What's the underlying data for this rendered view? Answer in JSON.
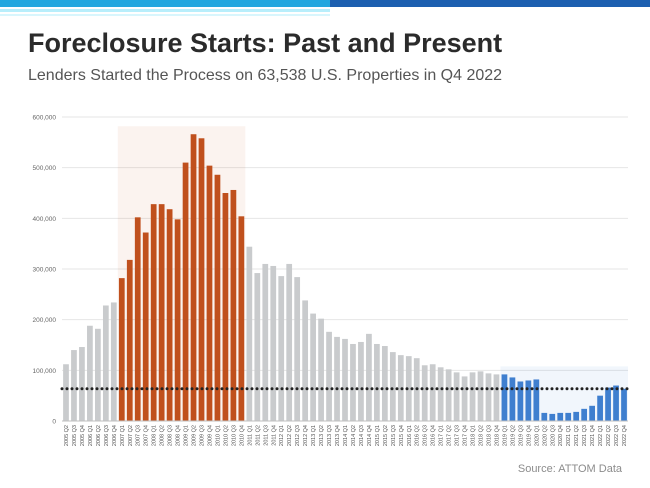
{
  "header": {
    "title": "Foreclosure Starts: Past and Present",
    "subtitle": "Lenders Started the Process on 63,538 U.S. Properties in Q4 2022"
  },
  "footer": {
    "source": "Source: ATTOM Data"
  },
  "colors": {
    "band_top": "#22a7df",
    "band_top_right": "#1c5fb0",
    "band_light": "#b8eefb",
    "gray_bar": "#c9cbcd",
    "crisis_bar": "#c0501d",
    "covid_bar": "#3f7fcf",
    "dotted_line": "#222222",
    "grid": "#e6e6e6"
  },
  "chart_data": {
    "type": "bar",
    "title": "Foreclosure Starts: Past and Present",
    "subtitle": "Lenders Started the Process on 63,538 U.S. Properties in Q4 2022",
    "ylim": [
      0,
      600000
    ],
    "yticks": [
      0,
      100000,
      200000,
      300000,
      400000,
      500000,
      600000
    ],
    "ytick_labels": [
      "0",
      "100,000",
      "200,000",
      "300,000",
      "400,000",
      "500,000",
      "600,000"
    ],
    "grid": true,
    "reference_line": {
      "value": 63538,
      "style": "dotted"
    },
    "highlight_ranges": [
      {
        "from": "2007 Q1",
        "to": "2010 Q4",
        "color": "#c0501d"
      },
      {
        "from": "2019 Q1",
        "to": "2022 Q4",
        "color": "#3f7fcf"
      }
    ],
    "categories": [
      "2005 Q2",
      "2005 Q3",
      "2005 Q4",
      "2006 Q1",
      "2006 Q2",
      "2006 Q3",
      "2006 Q4",
      "2007 Q1",
      "2007 Q2",
      "2007 Q3",
      "2007 Q4",
      "2008 Q1",
      "2008 Q2",
      "2008 Q3",
      "2008 Q4",
      "2009 Q1",
      "2009 Q2",
      "2009 Q3",
      "2009 Q4",
      "2010 Q1",
      "2010 Q2",
      "2010 Q3",
      "2010 Q4",
      "2011 Q1",
      "2011 Q2",
      "2011 Q3",
      "2011 Q4",
      "2012 Q1",
      "2012 Q2",
      "2012 Q3",
      "2012 Q4",
      "2013 Q1",
      "2013 Q2",
      "2013 Q3",
      "2013 Q4",
      "2014 Q1",
      "2014 Q2",
      "2014 Q3",
      "2014 Q4",
      "2015 Q1",
      "2015 Q2",
      "2015 Q3",
      "2015 Q4",
      "2016 Q1",
      "2016 Q2",
      "2016 Q3",
      "2016 Q4",
      "2017 Q1",
      "2017 Q2",
      "2017 Q3",
      "2017 Q4",
      "2018 Q1",
      "2018 Q2",
      "2018 Q3",
      "2018 Q4",
      "2019 Q1",
      "2019 Q2",
      "2019 Q3",
      "2019 Q4",
      "2020 Q1",
      "2020 Q2",
      "2020 Q3",
      "2020 Q4",
      "2021 Q1",
      "2021 Q2",
      "2021 Q3",
      "2021 Q4",
      "2022 Q1",
      "2022 Q2",
      "2022 Q3",
      "2022 Q4"
    ],
    "values": [
      112000,
      140000,
      146000,
      188000,
      182000,
      228000,
      234000,
      282000,
      318000,
      402000,
      372000,
      428000,
      428000,
      418000,
      398000,
      510000,
      566000,
      558000,
      504000,
      486000,
      450000,
      456000,
      404000,
      344000,
      292000,
      310000,
      306000,
      286000,
      310000,
      284000,
      238000,
      212000,
      202000,
      176000,
      166000,
      162000,
      152000,
      156000,
      172000,
      152000,
      148000,
      136000,
      130000,
      128000,
      124000,
      110000,
      112000,
      106000,
      102000,
      96000,
      88000,
      96000,
      98000,
      94000,
      92000,
      92000,
      86000,
      78000,
      80000,
      82000,
      16000,
      14000,
      16000,
      16000,
      18000,
      24000,
      30000,
      50000,
      66000,
      70000,
      63538
    ]
  }
}
